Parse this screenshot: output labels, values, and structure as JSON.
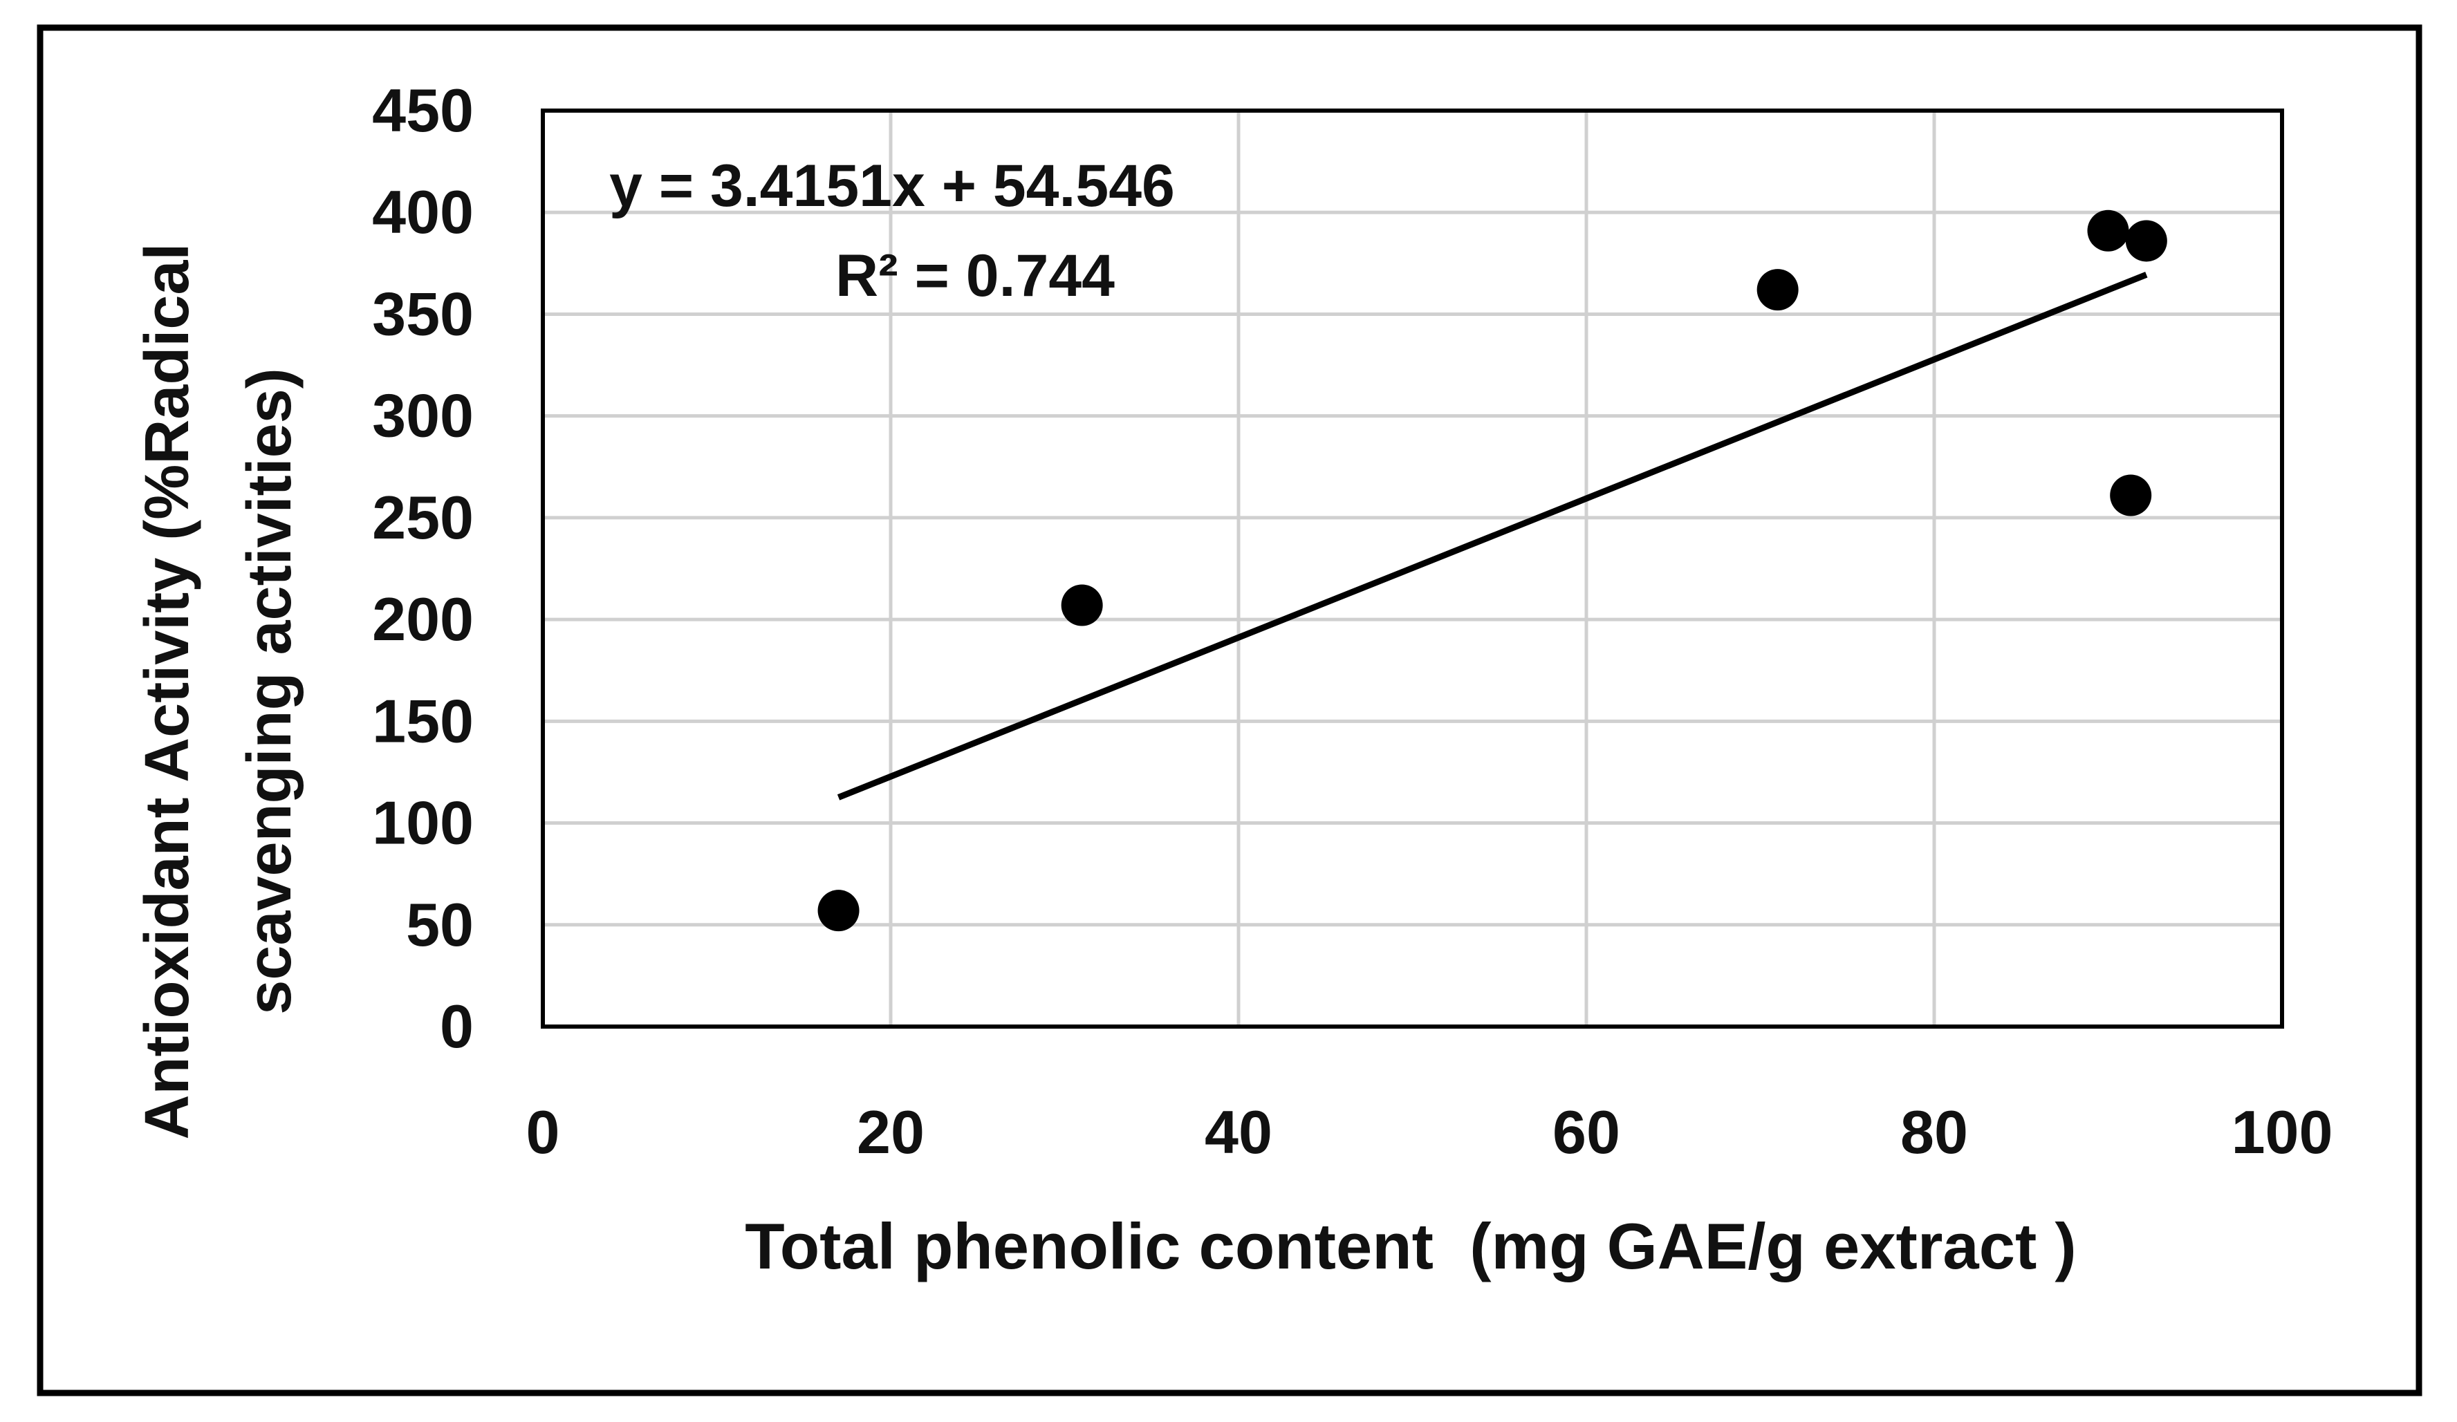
{
  "chart_data": {
    "type": "scatter",
    "title": "",
    "xlabel": "Total phenolic content  (mg GAE/g extract )",
    "ylabel_lines": [
      "Antioxidant Activity (%Radical",
      "scavenging activities)"
    ],
    "xlim": [
      0,
      100
    ],
    "ylim": [
      0,
      450
    ],
    "xticks": [
      0,
      20,
      40,
      60,
      80,
      100
    ],
    "yticks": [
      0,
      50,
      100,
      150,
      200,
      250,
      300,
      350,
      400,
      450
    ],
    "grid": true,
    "legend": "none",
    "series": [
      {
        "points": [
          {
            "x": 17,
            "y": 57
          },
          {
            "x": 31,
            "y": 207
          },
          {
            "x": 71,
            "y": 362
          },
          {
            "x": 90,
            "y": 391
          },
          {
            "x": 91.3,
            "y": 261
          },
          {
            "x": 92.2,
            "y": 386
          }
        ],
        "marker_color": "#000000"
      }
    ],
    "trendline": {
      "x_range": [
        17,
        92.2
      ],
      "slope": 3.4151,
      "intercept": 54.546,
      "color": "#000000"
    },
    "annotations": {
      "equation": "y = 3.4151x + 54.546",
      "r_squared": "R² = 0.744"
    },
    "colors": {
      "grid": "#d0d0d0",
      "axes": "#000000",
      "marker": "#000000"
    }
  }
}
